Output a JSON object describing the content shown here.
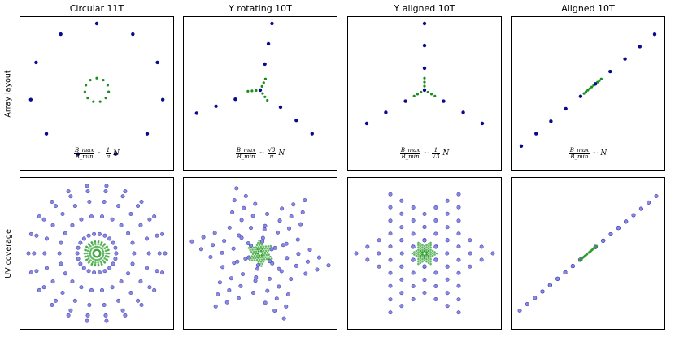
{
  "column_titles": [
    "Circular 11T",
    "Y rotating 10T",
    "Y aligned 10T",
    "Aligned 10T"
  ],
  "row_labels": [
    "Array layout",
    "UV coverage"
  ],
  "formulas": [
    {
      "num": "B_max",
      "den": "B_min",
      "sim": "~",
      "coef_num": "1",
      "coef_den": "π",
      "var": "N"
    },
    {
      "num": "B_max",
      "den": "B_min",
      "sim": "~",
      "coef_num": "√3",
      "coef_den": "π",
      "var": "N"
    },
    {
      "num": "B_max",
      "den": "B_min",
      "sim": "~",
      "coef_num": "1",
      "coef_den": "√3",
      "var": "N"
    },
    {
      "num": "B_max",
      "den": "B_min",
      "sim": "~",
      "coef_num": "",
      "coef_den": "",
      "var": "N"
    }
  ],
  "colors": {
    "array_outer": "#0a0a8c",
    "array_inner": "#1e8c1e",
    "uv_outer_fill": "#8a8ae0",
    "uv_outer_stroke": "#4848b8",
    "uv_inner": "#30a030",
    "frame": "#000000"
  },
  "chart_data": [
    {
      "type": "scatter",
      "title": "Circular 11T",
      "array_layout": {
        "outer": {
          "shape": "circle",
          "count": 11,
          "radius": 1.0,
          "rotation_deg": 90
        },
        "inner": {
          "shape": "circle",
          "count": 11,
          "radius": 0.18,
          "rotation_deg": 90
        }
      },
      "uv_coverage": {
        "baselines": "all pairs of outer array",
        "inner": "all pairs of inner array"
      },
      "formula": "B_max/B_min ~ (1/π) N"
    },
    {
      "type": "scatter",
      "title": "Y rotating 10T",
      "array_layout": {
        "outer": {
          "shape": "Y",
          "points_per_arm": 3,
          "arm_positions": [
            0.45,
            0.8,
            1.15
          ],
          "arm_angles_deg": [
            80,
            200,
            320
          ],
          "center": true
        },
        "inner": {
          "shape": "Y",
          "points_per_arm": 3,
          "arm_positions": [
            0.07,
            0.14,
            0.21
          ],
          "arm_angles_deg": [
            65,
            185,
            305
          ],
          "center": true
        }
      },
      "uv_coverage": {
        "baselines": "all pairs of outer array",
        "inner": "all pairs of inner array"
      },
      "formula": "B_max/B_min ~ (√3/π) N"
    },
    {
      "type": "scatter",
      "title": "Y aligned 10T",
      "array_layout": {
        "outer": {
          "shape": "Y",
          "points_per_arm": 3,
          "arm_positions": [
            0.33,
            0.67,
            1.0
          ],
          "arm_angles_deg": [
            90,
            210,
            330
          ],
          "center": true
        },
        "inner": {
          "shape": "Y",
          "points_per_arm": 3,
          "arm_positions": [
            0.06,
            0.12,
            0.18
          ],
          "arm_angles_deg": [
            90,
            210,
            330
          ],
          "center": true
        }
      },
      "uv_coverage": {
        "baselines": "all pairs of outer array",
        "inner": "all pairs of inner array"
      },
      "formula": "B_max/B_min ~ (1/√3) N"
    },
    {
      "type": "scatter",
      "title": "Aligned 10T",
      "array_layout": {
        "outer": {
          "shape": "line",
          "count": 10,
          "angle_deg": 40,
          "positions": [
            -1,
            -0.778,
            -0.556,
            -0.333,
            -0.111,
            0.111,
            0.333,
            0.556,
            0.778,
            1.0
          ]
        },
        "inner": {
          "shape": "line",
          "count": 10,
          "angle_deg": 40,
          "segment": [
            -0.06,
            0.2
          ]
        }
      },
      "uv_coverage": {
        "baselines": "all pairs of outer array",
        "inner": "all pairs of inner array"
      },
      "formula": "B_max/B_min ~ N"
    }
  ]
}
